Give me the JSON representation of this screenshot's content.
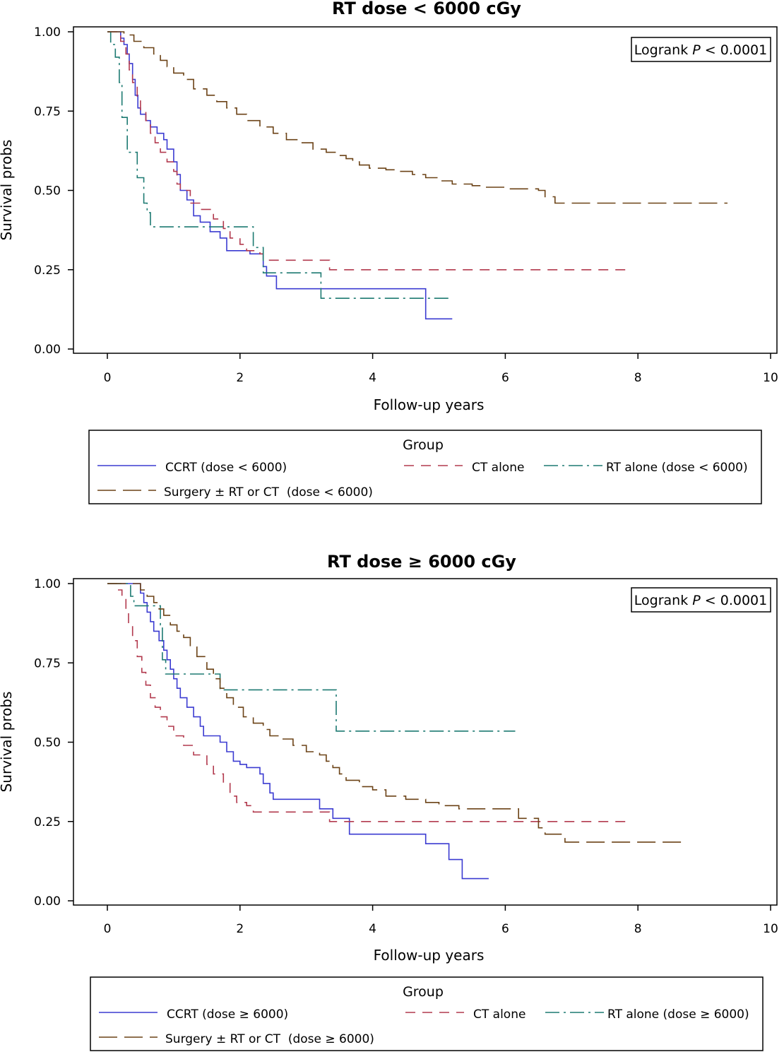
{
  "chart_data": [
    {
      "type": "line",
      "title": "RT dose < 6000 cGy",
      "xlabel": "Follow-up years",
      "ylabel": "Survival probs",
      "xlim": [
        0,
        10
      ],
      "ylim": [
        0,
        1
      ],
      "xticks": [
        "0",
        "2",
        "4",
        "6",
        "8",
        "10"
      ],
      "yticks": [
        "0.00",
        "0.25",
        "0.50",
        "0.75",
        "1.00"
      ],
      "annotation": {
        "prefix": "Logrank ",
        "p": "P",
        "suffix": " < 0.0001"
      },
      "legend_title": "Group",
      "legend_rows": [
        [
          "CCRT (dose < 6000)",
          "CT alone",
          "RT alone (dose < 6000)"
        ],
        [
          "Surgery ± RT or CT  (dose < 6000)"
        ]
      ],
      "grid": false,
      "series": [
        {
          "name": "CCRT (dose < 6000)",
          "color": "#3b3bd1",
          "dash": "solid",
          "steps": [
            [
              0,
              1.0
            ],
            [
              0.15,
              1.0
            ],
            [
              0.2,
              0.98
            ],
            [
              0.25,
              0.96
            ],
            [
              0.3,
              0.93
            ],
            [
              0.33,
              0.9
            ],
            [
              0.38,
              0.85
            ],
            [
              0.42,
              0.8
            ],
            [
              0.46,
              0.76
            ],
            [
              0.5,
              0.74
            ],
            [
              0.58,
              0.72
            ],
            [
              0.65,
              0.7
            ],
            [
              0.75,
              0.68
            ],
            [
              0.85,
              0.66
            ],
            [
              0.9,
              0.63
            ],
            [
              1.0,
              0.59
            ],
            [
              1.05,
              0.55
            ],
            [
              1.1,
              0.5
            ],
            [
              1.2,
              0.47
            ],
            [
              1.3,
              0.42
            ],
            [
              1.4,
              0.4
            ],
            [
              1.55,
              0.37
            ],
            [
              1.7,
              0.35
            ],
            [
              1.8,
              0.31
            ],
            [
              2.0,
              0.31
            ],
            [
              2.15,
              0.3
            ],
            [
              2.35,
              0.26
            ],
            [
              2.4,
              0.23
            ],
            [
              2.55,
              0.19
            ],
            [
              4.8,
              0.19
            ],
            [
              4.8,
              0.095
            ],
            [
              5.2,
              0.095
            ]
          ]
        },
        {
          "name": "CT alone",
          "color": "#b23a4e",
          "dash": "14,10",
          "steps": [
            [
              0,
              1.0
            ],
            [
              0.15,
              1.0
            ],
            [
              0.2,
              0.97
            ],
            [
              0.28,
              0.93
            ],
            [
              0.33,
              0.88
            ],
            [
              0.38,
              0.84
            ],
            [
              0.45,
              0.79
            ],
            [
              0.5,
              0.75
            ],
            [
              0.58,
              0.72
            ],
            [
              0.65,
              0.68
            ],
            [
              0.72,
              0.65
            ],
            [
              0.8,
              0.62
            ],
            [
              0.9,
              0.59
            ],
            [
              1.0,
              0.56
            ],
            [
              1.05,
              0.52
            ],
            [
              1.1,
              0.5
            ],
            [
              1.25,
              0.46
            ],
            [
              1.4,
              0.44
            ],
            [
              1.6,
              0.41
            ],
            [
              1.75,
              0.38
            ],
            [
              1.85,
              0.35
            ],
            [
              2.0,
              0.33
            ],
            [
              2.1,
              0.31
            ],
            [
              2.3,
              0.3
            ],
            [
              2.35,
              0.28
            ],
            [
              3.35,
              0.28
            ],
            [
              3.35,
              0.25
            ],
            [
              7.9,
              0.25
            ]
          ]
        },
        {
          "name": "RT alone (dose < 6000)",
          "color": "#1d7a72",
          "dash": "20,6,3,6",
          "steps": [
            [
              0,
              1.0
            ],
            [
              0.05,
              0.96
            ],
            [
              0.12,
              0.92
            ],
            [
              0.18,
              0.84
            ],
            [
              0.22,
              0.73
            ],
            [
              0.3,
              0.62
            ],
            [
              0.45,
              0.54
            ],
            [
              0.55,
              0.46
            ],
            [
              0.6,
              0.43
            ],
            [
              0.65,
              0.385
            ],
            [
              2.15,
              0.385
            ],
            [
              2.2,
              0.32
            ],
            [
              2.35,
              0.24
            ],
            [
              3.2,
              0.24
            ],
            [
              3.22,
              0.16
            ],
            [
              5.2,
              0.16
            ]
          ]
        },
        {
          "name": "Surgery ± RT or CT  (dose < 6000)",
          "color": "#6b4216",
          "dash": "26,10",
          "steps": [
            [
              0,
              1.0
            ],
            [
              0.15,
              1.0
            ],
            [
              0.25,
              0.99
            ],
            [
              0.4,
              0.97
            ],
            [
              0.55,
              0.95
            ],
            [
              0.7,
              0.93
            ],
            [
              0.8,
              0.91
            ],
            [
              0.9,
              0.89
            ],
            [
              1.0,
              0.87
            ],
            [
              1.15,
              0.85
            ],
            [
              1.3,
              0.82
            ],
            [
              1.5,
              0.8
            ],
            [
              1.65,
              0.78
            ],
            [
              1.8,
              0.76
            ],
            [
              1.95,
              0.74
            ],
            [
              2.1,
              0.72
            ],
            [
              2.3,
              0.7
            ],
            [
              2.5,
              0.68
            ],
            [
              2.7,
              0.66
            ],
            [
              2.9,
              0.65
            ],
            [
              3.1,
              0.63
            ],
            [
              3.3,
              0.62
            ],
            [
              3.5,
              0.61
            ],
            [
              3.6,
              0.6
            ],
            [
              3.7,
              0.59
            ],
            [
              3.8,
              0.58
            ],
            [
              3.95,
              0.57
            ],
            [
              4.2,
              0.565
            ],
            [
              4.4,
              0.56
            ],
            [
              4.6,
              0.55
            ],
            [
              4.8,
              0.54
            ],
            [
              5.0,
              0.53
            ],
            [
              5.2,
              0.52
            ],
            [
              5.5,
              0.515
            ],
            [
              5.7,
              0.51
            ],
            [
              6.0,
              0.505
            ],
            [
              6.5,
              0.5
            ],
            [
              6.6,
              0.48
            ],
            [
              6.75,
              0.46
            ],
            [
              9.35,
              0.46
            ]
          ]
        }
      ]
    },
    {
      "type": "line",
      "title": "RT dose ≥ 6000 cGy",
      "xlabel": "Follow-up years",
      "ylabel": "Survival probs",
      "xlim": [
        0,
        10
      ],
      "ylim": [
        0,
        1
      ],
      "xticks": [
        "0",
        "2",
        "4",
        "6",
        "8",
        "10"
      ],
      "yticks": [
        "0.00",
        "0.25",
        "0.50",
        "0.75",
        "1.00"
      ],
      "annotation": {
        "prefix": "Logrank ",
        "p": "P",
        "suffix": " < 0.0001"
      },
      "legend_title": "Group",
      "legend_rows": [
        [
          "CCRT (dose ≥ 6000)",
          "CT alone",
          "RT alone (dose ≥ 6000)"
        ],
        [
          "Surgery ± RT or CT  (dose ≥ 6000)"
        ]
      ],
      "grid": false,
      "series": [
        {
          "name": "CCRT (dose ≥ 6000)",
          "color": "#3b3bd1",
          "dash": "solid",
          "steps": [
            [
              0,
              1.0
            ],
            [
              0.4,
              1.0
            ],
            [
              0.5,
              0.97
            ],
            [
              0.55,
              0.94
            ],
            [
              0.6,
              0.91
            ],
            [
              0.65,
              0.88
            ],
            [
              0.7,
              0.85
            ],
            [
              0.78,
              0.82
            ],
            [
              0.85,
              0.79
            ],
            [
              0.9,
              0.76
            ],
            [
              0.95,
              0.73
            ],
            [
              1.0,
              0.7
            ],
            [
              1.05,
              0.67
            ],
            [
              1.1,
              0.64
            ],
            [
              1.2,
              0.61
            ],
            [
              1.3,
              0.58
            ],
            [
              1.4,
              0.55
            ],
            [
              1.45,
              0.52
            ],
            [
              1.7,
              0.5
            ],
            [
              1.8,
              0.47
            ],
            [
              1.9,
              0.44
            ],
            [
              2.0,
              0.43
            ],
            [
              2.1,
              0.42
            ],
            [
              2.3,
              0.4
            ],
            [
              2.35,
              0.37
            ],
            [
              2.45,
              0.34
            ],
            [
              2.5,
              0.32
            ],
            [
              3.1,
              0.32
            ],
            [
              3.2,
              0.29
            ],
            [
              3.4,
              0.26
            ],
            [
              3.65,
              0.24
            ],
            [
              3.65,
              0.21
            ],
            [
              4.8,
              0.21
            ],
            [
              4.8,
              0.18
            ],
            [
              5.15,
              0.18
            ],
            [
              5.15,
              0.13
            ],
            [
              5.35,
              0.13
            ],
            [
              5.35,
              0.07
            ],
            [
              5.75,
              0.07
            ]
          ]
        },
        {
          "name": "CT alone",
          "color": "#b23a4e",
          "dash": "14,10",
          "steps": [
            [
              0,
              1.0
            ],
            [
              0.15,
              0.98
            ],
            [
              0.22,
              0.95
            ],
            [
              0.28,
              0.91
            ],
            [
              0.32,
              0.87
            ],
            [
              0.38,
              0.82
            ],
            [
              0.45,
              0.77
            ],
            [
              0.52,
              0.72
            ],
            [
              0.58,
              0.68
            ],
            [
              0.65,
              0.64
            ],
            [
              0.72,
              0.61
            ],
            [
              0.8,
              0.58
            ],
            [
              0.9,
              0.55
            ],
            [
              1.0,
              0.52
            ],
            [
              1.15,
              0.49
            ],
            [
              1.3,
              0.46
            ],
            [
              1.5,
              0.43
            ],
            [
              1.6,
              0.4
            ],
            [
              1.75,
              0.37
            ],
            [
              1.85,
              0.33
            ],
            [
              1.95,
              0.31
            ],
            [
              2.1,
              0.3
            ],
            [
              2.2,
              0.28
            ],
            [
              3.35,
              0.28
            ],
            [
              3.35,
              0.25
            ],
            [
              7.9,
              0.25
            ]
          ]
        },
        {
          "name": "RT alone (dose ≥ 6000)",
          "color": "#1d7a72",
          "dash": "20,6,3,6",
          "steps": [
            [
              0,
              1.0
            ],
            [
              0.35,
              0.96
            ],
            [
              0.4,
              0.93
            ],
            [
              0.75,
              0.93
            ],
            [
              0.8,
              0.87
            ],
            [
              0.83,
              0.76
            ],
            [
              0.88,
              0.715
            ],
            [
              1.55,
              0.715
            ],
            [
              1.7,
              0.665
            ],
            [
              3.45,
              0.665
            ],
            [
              3.45,
              0.535
            ],
            [
              6.15,
              0.535
            ]
          ]
        },
        {
          "name": "Surgery ± RT or CT  (dose ≥ 6000)",
          "color": "#6b4216",
          "dash": "26,10",
          "steps": [
            [
              0,
              1.0
            ],
            [
              0.4,
              1.0
            ],
            [
              0.5,
              0.98
            ],
            [
              0.6,
              0.96
            ],
            [
              0.7,
              0.94
            ],
            [
              0.78,
              0.92
            ],
            [
              0.85,
              0.9
            ],
            [
              0.95,
              0.87
            ],
            [
              1.05,
              0.85
            ],
            [
              1.15,
              0.83
            ],
            [
              1.25,
              0.8
            ],
            [
              1.35,
              0.77
            ],
            [
              1.5,
              0.73
            ],
            [
              1.6,
              0.7
            ],
            [
              1.7,
              0.67
            ],
            [
              1.8,
              0.64
            ],
            [
              1.9,
              0.61
            ],
            [
              2.05,
              0.58
            ],
            [
              2.2,
              0.56
            ],
            [
              2.35,
              0.54
            ],
            [
              2.45,
              0.52
            ],
            [
              2.6,
              0.51
            ],
            [
              2.8,
              0.49
            ],
            [
              3.0,
              0.47
            ],
            [
              3.2,
              0.46
            ],
            [
              3.3,
              0.44
            ],
            [
              3.4,
              0.42
            ],
            [
              3.5,
              0.4
            ],
            [
              3.6,
              0.38
            ],
            [
              3.8,
              0.36
            ],
            [
              4.0,
              0.35
            ],
            [
              4.2,
              0.33
            ],
            [
              4.5,
              0.32
            ],
            [
              4.8,
              0.31
            ],
            [
              5.0,
              0.3
            ],
            [
              5.3,
              0.29
            ],
            [
              5.5,
              0.29
            ],
            [
              6.15,
              0.29
            ],
            [
              6.2,
              0.26
            ],
            [
              6.5,
              0.23
            ],
            [
              6.6,
              0.21
            ],
            [
              6.9,
              0.185
            ],
            [
              8.65,
              0.185
            ]
          ]
        }
      ]
    }
  ]
}
